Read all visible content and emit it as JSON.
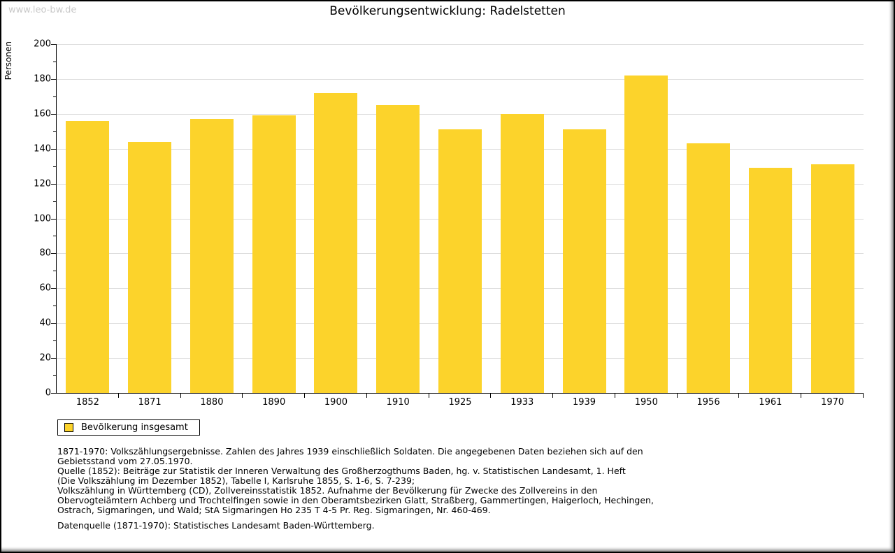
{
  "page": {
    "watermark": "www.leo-bw.de"
  },
  "chart_data": {
    "type": "bar",
    "title": "Bevölkerungsentwicklung: Radelstetten",
    "ylabel": "Personen",
    "xlabel": "",
    "categories": [
      "1852",
      "1871",
      "1880",
      "1890",
      "1900",
      "1910",
      "1925",
      "1933",
      "1939",
      "1950",
      "1956",
      "1961",
      "1970"
    ],
    "values": [
      156,
      144,
      157,
      159,
      172,
      165,
      151,
      160,
      151,
      182,
      143,
      129,
      131
    ],
    "ylim": [
      0,
      200
    ],
    "ytick_step": 20,
    "yminor_step": 10,
    "grid": true,
    "legend_position": "bottom-left",
    "bar_color": "#FCD32B",
    "grid_color": "#DADADA"
  },
  "legend": {
    "label": "Bevölkerung insgesamt",
    "swatch_color": "#FCD32B"
  },
  "footer": {
    "lines": [
      "1871-1970: Volkszählungsergebnisse. Zahlen des Jahres 1939 einschließlich Soldaten. Die angegebenen Daten beziehen sich auf den",
      "Gebietsstand vom 27.05.1970.",
      "Quelle (1852): Beiträge zur Statistik der Inneren Verwaltung des Großherzogthums Baden, hg. v. Statistischen Landesamt, 1. Heft",
      "(Die Volkszählung im Dezember 1852), Tabelle I, Karlsruhe 1855, S. 1-6, S. 7-239;",
      "Volkszählung in Württemberg (CD), Zollvereinsstatistik 1852. Aufnahme der Bevölkerung für Zwecke des Zollvereins in den",
      "Obervogteiämtern Achberg und Trochtelfingen sowie in den Oberamtsbezirken Glatt, Straßberg, Gammertingen, Haigerloch, Hechingen,",
      "Ostrach, Sigmaringen, und Wald; StA Sigmaringen Ho 235 T 4-5 Pr. Reg. Sigmaringen, Nr. 460-469."
    ],
    "datasource": "Datenquelle (1871-1970): Statistisches Landesamt Baden-Württemberg."
  }
}
